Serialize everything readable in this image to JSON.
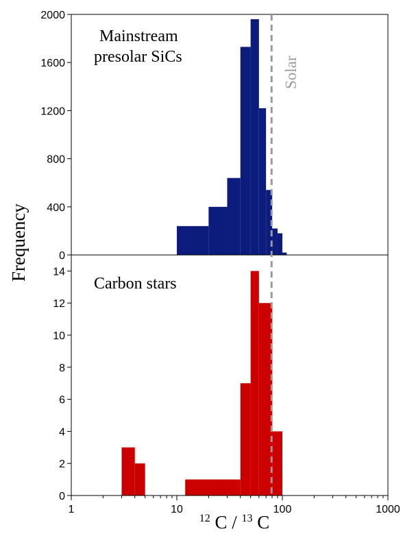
{
  "chart_data": {
    "type": "bar",
    "xlabel_parts": {
      "a_sup": "12",
      "a": "C",
      "sep": "/",
      "b_sup": "13",
      "b": "C"
    },
    "ylabel": "Frequency",
    "x_scale": "log",
    "xlim": [
      1,
      1000
    ],
    "x_ticks": [
      1,
      10,
      100,
      1000
    ],
    "x_tick_labels": [
      "1",
      "10",
      "100",
      "1000"
    ],
    "reference_line": {
      "x": 79,
      "label": "Solar",
      "color": "#999999",
      "style": "dashed"
    },
    "panels": [
      {
        "label_lines": [
          "Mainstream",
          "presolar SiCs"
        ],
        "color": "#0c1c7c",
        "ylim": [
          0,
          2000
        ],
        "y_ticks": [
          0,
          400,
          800,
          1200,
          1600,
          2000
        ],
        "bins": [
          {
            "x0": 10,
            "x1": 20,
            "value": 240
          },
          {
            "x0": 20,
            "x1": 30,
            "value": 400
          },
          {
            "x0": 30,
            "x1": 40,
            "value": 640
          },
          {
            "x0": 40,
            "x1": 50,
            "value": 1730
          },
          {
            "x0": 50,
            "x1": 60,
            "value": 1960
          },
          {
            "x0": 60,
            "x1": 70,
            "value": 1220
          },
          {
            "x0": 70,
            "x1": 80,
            "value": 540
          },
          {
            "x0": 80,
            "x1": 90,
            "value": 220
          },
          {
            "x0": 90,
            "x1": 100,
            "value": 180
          },
          {
            "x0": 100,
            "x1": 110,
            "value": 20
          }
        ]
      },
      {
        "label_lines": [
          "Carbon stars"
        ],
        "color": "#cc0000",
        "ylim": [
          0,
          15
        ],
        "y_ticks": [
          0,
          2,
          4,
          6,
          8,
          10,
          12,
          14
        ],
        "bins": [
          {
            "x0": 3,
            "x1": 4,
            "value": 3
          },
          {
            "x0": 4,
            "x1": 5,
            "value": 2
          },
          {
            "x0": 12,
            "x1": 40,
            "value": 1
          },
          {
            "x0": 40,
            "x1": 50,
            "value": 7
          },
          {
            "x0": 50,
            "x1": 60,
            "value": 14
          },
          {
            "x0": 60,
            "x1": 80,
            "value": 12
          },
          {
            "x0": 80,
            "x1": 100,
            "value": 4
          }
        ]
      }
    ]
  }
}
